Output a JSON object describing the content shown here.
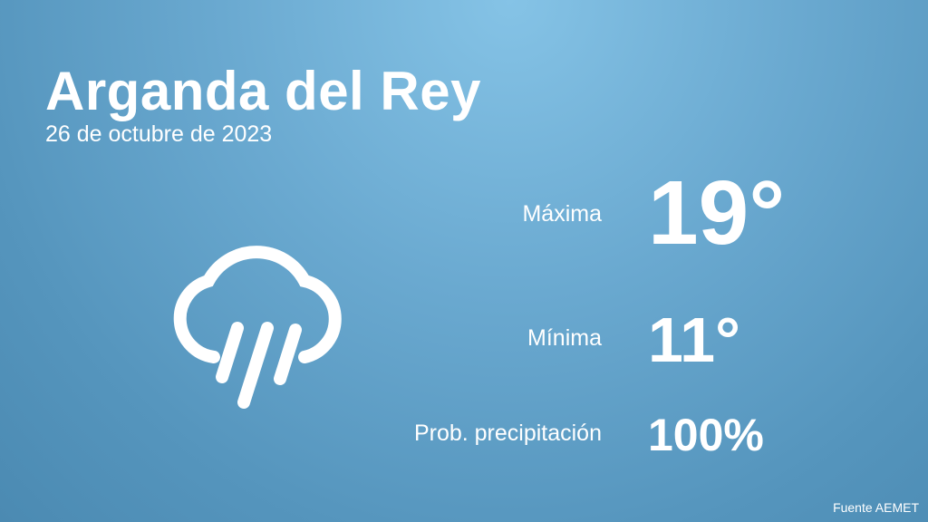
{
  "location": "Arganda del Rey",
  "date": "26 de octubre de 2023",
  "weather_icon": "rain-cloud-icon",
  "max": {
    "label": "Máxima",
    "value": "19°"
  },
  "min": {
    "label": "Mínima",
    "value": "11°"
  },
  "precip": {
    "label": "Prob. precipitación",
    "value": "100%"
  },
  "source": "Fuente AEMET"
}
